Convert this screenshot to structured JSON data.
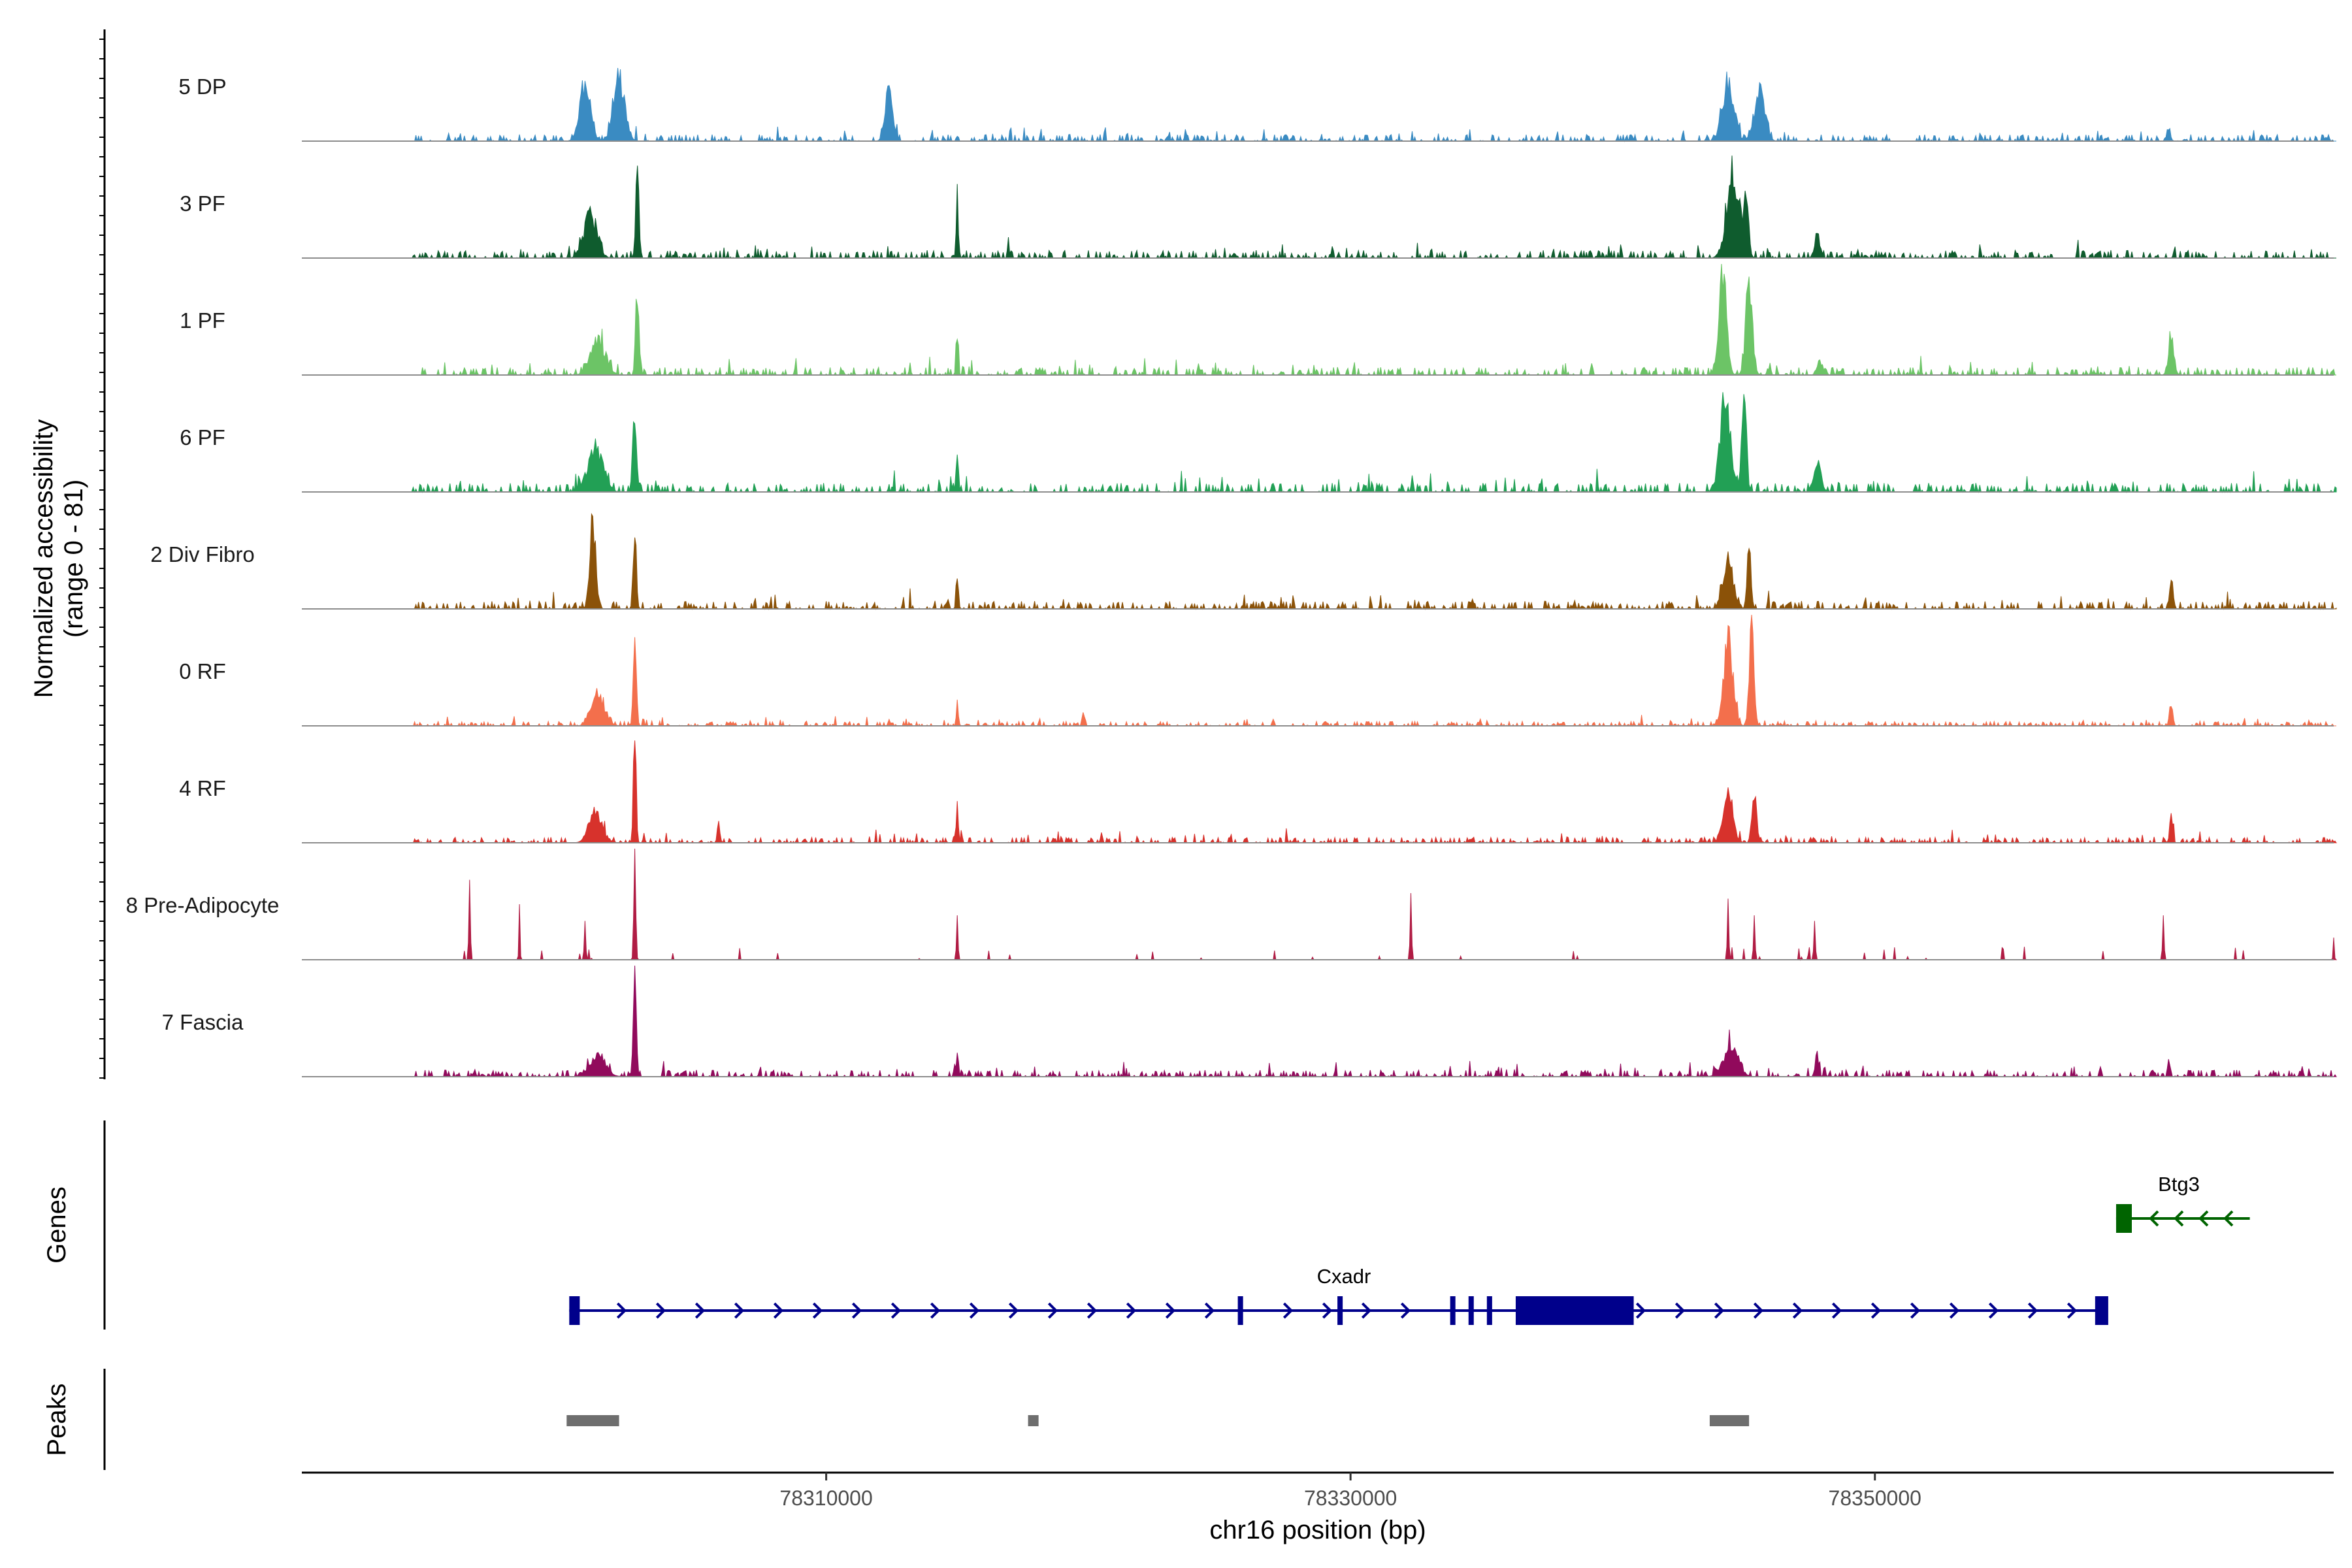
{
  "chart_data": {
    "type": "area",
    "title": "",
    "ylabel_line1": "Normalized accessibility",
    "ylabel_line2": "(range 0 - 81)",
    "ylim": [
      0,
      81
    ],
    "xlabel": "chr16 position (bp)",
    "xlim": [
      78290000,
      78367500
    ],
    "xticks": [
      {
        "value": 78310000,
        "label": "78310000"
      },
      {
        "value": 78330000,
        "label": "78330000"
      },
      {
        "value": 78350000,
        "label": "78350000"
      }
    ],
    "series": [
      {
        "name": "5 DP",
        "color": "#3a8bc2",
        "baseline": 6,
        "noise": 0.06,
        "peaks": [
          [
            78300800,
            280,
            0.5
          ],
          [
            78302100,
            300,
            0.55
          ],
          [
            78312400,
            200,
            0.45
          ],
          [
            78344400,
            300,
            0.55
          ],
          [
            78345600,
            280,
            0.45
          ],
          [
            78361200,
            100,
            0.12
          ]
        ]
      },
      {
        "name": "3 PF",
        "color": "#0f5c2e",
        "baseline": 5,
        "noise": 0.07,
        "peaks": [
          [
            78301000,
            350,
            0.38
          ],
          [
            78302800,
            90,
            0.7
          ],
          [
            78315000,
            60,
            0.42
          ],
          [
            78344600,
            350,
            0.72
          ],
          [
            78345100,
            120,
            0.5
          ],
          [
            78347800,
            150,
            0.2
          ]
        ]
      },
      {
        "name": "1 PF",
        "color": "#6cc466",
        "baseline": 8,
        "noise": 0.07,
        "peaks": [
          [
            78301300,
            400,
            0.3
          ],
          [
            78302800,
            90,
            0.78
          ],
          [
            78315000,
            60,
            0.3
          ],
          [
            78344200,
            200,
            0.88
          ],
          [
            78345200,
            180,
            0.82
          ],
          [
            78347900,
            150,
            0.12
          ],
          [
            78361300,
            150,
            0.3
          ]
        ]
      },
      {
        "name": "6 PF",
        "color": "#22a055",
        "baseline": 6,
        "noise": 0.08,
        "peaks": [
          [
            78301200,
            400,
            0.4
          ],
          [
            78302700,
            100,
            0.75
          ],
          [
            78315000,
            60,
            0.35
          ],
          [
            78344300,
            280,
            0.85
          ],
          [
            78345000,
            120,
            0.98
          ],
          [
            78347800,
            200,
            0.25
          ]
        ]
      },
      {
        "name": "2 Div Fibro",
        "color": "#8b5208",
        "baseline": 4,
        "noise": 0.07,
        "peaks": [
          [
            78301100,
            150,
            0.78
          ],
          [
            78302700,
            80,
            0.72
          ],
          [
            78315000,
            60,
            0.3
          ],
          [
            78344400,
            280,
            0.42
          ],
          [
            78345200,
            100,
            0.6
          ],
          [
            78361300,
            100,
            0.22
          ]
        ]
      },
      {
        "name": "0 RF",
        "color": "#f36f4c",
        "baseline": 2,
        "noise": 0.04,
        "peaks": [
          [
            78301300,
            350,
            0.28
          ],
          [
            78302700,
            80,
            0.85
          ],
          [
            78315000,
            50,
            0.2
          ],
          [
            78319800,
            60,
            0.16
          ],
          [
            78344400,
            250,
            0.75
          ],
          [
            78345300,
            120,
            0.98
          ],
          [
            78361300,
            80,
            0.2
          ]
        ]
      },
      {
        "name": "4 RF",
        "color": "#d7322c",
        "baseline": 3,
        "noise": 0.05,
        "peaks": [
          [
            78301200,
            350,
            0.25
          ],
          [
            78302700,
            70,
            1.0
          ],
          [
            78305900,
            70,
            0.18
          ],
          [
            78315000,
            60,
            0.28
          ],
          [
            78344400,
            250,
            0.45
          ],
          [
            78345400,
            120,
            0.5
          ],
          [
            78361300,
            80,
            0.25
          ]
        ]
      },
      {
        "name": "8 Pre-Adipocyte",
        "color": "#b01c44",
        "baseline": 0,
        "noise": 0.0,
        "spiky": true,
        "peaks": [
          [
            78296400,
            40,
            0.72
          ],
          [
            78298300,
            30,
            0.5
          ],
          [
            78300800,
            40,
            0.35
          ],
          [
            78302700,
            50,
            1.0
          ],
          [
            78315000,
            40,
            0.4
          ],
          [
            78332300,
            40,
            0.6
          ],
          [
            78344400,
            40,
            0.55
          ],
          [
            78345400,
            40,
            0.4
          ],
          [
            78347700,
            40,
            0.35
          ],
          [
            78361000,
            40,
            0.4
          ],
          [
            78367500,
            30,
            0.2
          ]
        ]
      },
      {
        "name": "7 Fascia",
        "color": "#910a5c",
        "baseline": 4,
        "noise": 0.06,
        "peaks": [
          [
            78301300,
            400,
            0.2
          ],
          [
            78302700,
            80,
            1.0
          ],
          [
            78315000,
            60,
            0.18
          ],
          [
            78344500,
            400,
            0.25
          ],
          [
            78347800,
            80,
            0.2
          ],
          [
            78361200,
            60,
            0.15
          ]
        ]
      }
    ],
    "genes_label": "Genes",
    "peaks_label": "Peaks",
    "genes": [
      {
        "name": "Cxadr",
        "start": 78300200,
        "end": 78358800,
        "strand": "+",
        "color": "#00008b",
        "exons": [
          [
            78300200,
            78300600
          ],
          [
            78325700,
            78325900
          ],
          [
            78329500,
            78329700
          ],
          [
            78333800,
            78334000
          ],
          [
            78334500,
            78334700
          ],
          [
            78335200,
            78335400
          ],
          [
            78336300,
            78340800
          ],
          [
            78358400,
            78358900
          ]
        ]
      },
      {
        "name": "Btg3",
        "start": 78359200,
        "end": 78364300,
        "strand": "-",
        "color": "#006400",
        "exons": [
          [
            78359200,
            78359800
          ]
        ]
      }
    ],
    "peak_regions": [
      [
        78300100,
        78302100
      ],
      [
        78317700,
        78318100
      ],
      [
        78343700,
        78345200
      ]
    ],
    "peak_color": "#6e6e6e"
  }
}
